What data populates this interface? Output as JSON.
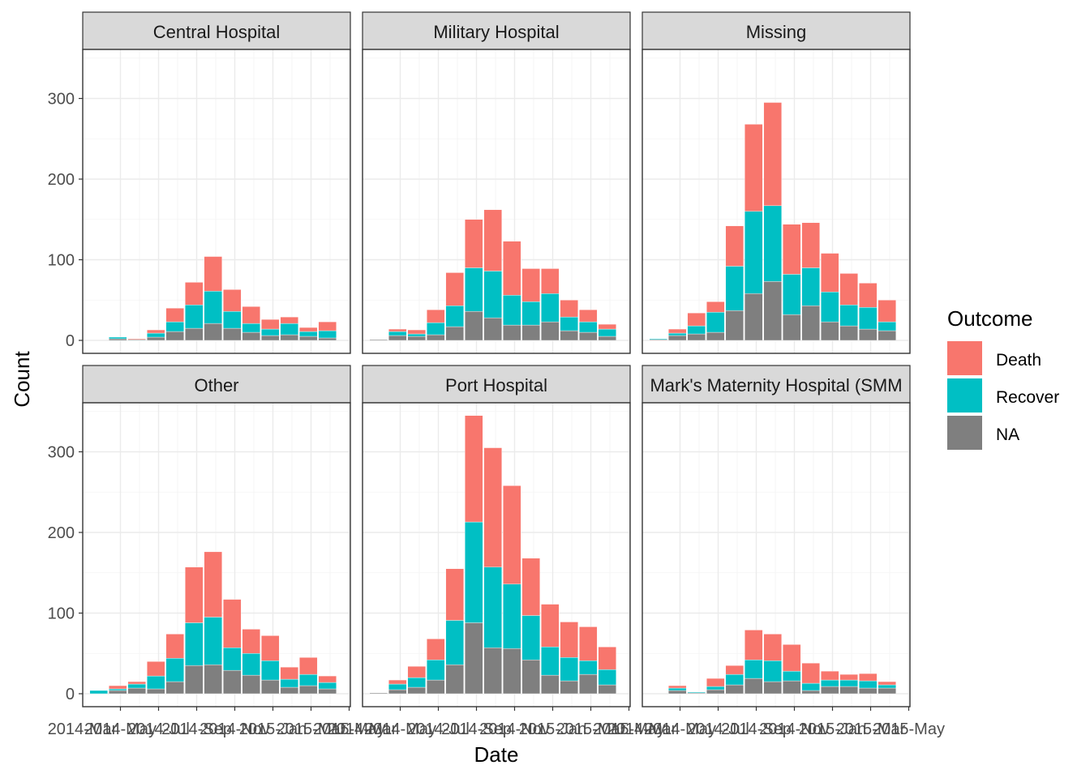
{
  "chart_data": {
    "type": "bar",
    "stacked": true,
    "facets": [
      "Central Hospital",
      "Military Hospital",
      "Missing",
      "Other",
      "Port Hospital",
      "Mark's Maternity Hospital (SMM"
    ],
    "x_tick_labels": [
      "2014-Mar",
      "2014-May",
      "2014-Jul",
      "2014-Sep",
      "2014-Nov",
      "2015-Jan",
      "2015-Mar",
      "2015-May"
    ],
    "xlabel": "Date",
    "ylabel": "Count",
    "ylim": [
      0,
      360
    ],
    "y_ticks": [
      0,
      100,
      200,
      300
    ],
    "grid": true,
    "legend": {
      "title": "Outcome",
      "position": "right",
      "entries": [
        {
          "name": "Death",
          "color": "#F8766D"
        },
        {
          "name": "Recover",
          "color": "#00BFC4"
        },
        {
          "name": "NA",
          "color": "#7F7F7F"
        }
      ]
    },
    "bars": [
      {
        "facet": "Central Hospital",
        "bars": [
          {
            "slot": 1,
            "na": 2,
            "recover": 2,
            "death": 0
          },
          {
            "slot": 2,
            "na": 1,
            "recover": 0,
            "death": 1
          },
          {
            "slot": 3,
            "na": 4,
            "recover": 5,
            "death": 4
          },
          {
            "slot": 4,
            "na": 11,
            "recover": 12,
            "death": 17
          },
          {
            "slot": 5,
            "na": 15,
            "recover": 29,
            "death": 28
          },
          {
            "slot": 6,
            "na": 21,
            "recover": 40,
            "death": 43
          },
          {
            "slot": 7,
            "na": 15,
            "recover": 21,
            "death": 27
          },
          {
            "slot": 8,
            "na": 10,
            "recover": 11,
            "death": 21
          },
          {
            "slot": 9,
            "na": 6,
            "recover": 8,
            "death": 12
          },
          {
            "slot": 10,
            "na": 7,
            "recover": 14,
            "death": 8
          },
          {
            "slot": 11,
            "na": 5,
            "recover": 6,
            "death": 5
          },
          {
            "slot": 12,
            "na": 3,
            "recover": 9,
            "death": 11
          }
        ]
      },
      {
        "facet": "Military Hospital",
        "bars": [
          {
            "slot": 0,
            "na": 1,
            "recover": 0,
            "death": 0
          },
          {
            "slot": 1,
            "na": 6,
            "recover": 5,
            "death": 3
          },
          {
            "slot": 2,
            "na": 5,
            "recover": 3,
            "death": 5
          },
          {
            "slot": 3,
            "na": 7,
            "recover": 15,
            "death": 16
          },
          {
            "slot": 4,
            "na": 17,
            "recover": 26,
            "death": 41
          },
          {
            "slot": 5,
            "na": 36,
            "recover": 54,
            "death": 60
          },
          {
            "slot": 6,
            "na": 28,
            "recover": 58,
            "death": 76
          },
          {
            "slot": 7,
            "na": 19,
            "recover": 37,
            "death": 67
          },
          {
            "slot": 8,
            "na": 19,
            "recover": 29,
            "death": 41
          },
          {
            "slot": 9,
            "na": 23,
            "recover": 35,
            "death": 31
          },
          {
            "slot": 10,
            "na": 12,
            "recover": 17,
            "death": 21
          },
          {
            "slot": 11,
            "na": 10,
            "recover": 13,
            "death": 15
          },
          {
            "slot": 12,
            "na": 5,
            "recover": 9,
            "death": 6
          }
        ]
      },
      {
        "facet": "Missing",
        "bars": [
          {
            "slot": 0,
            "na": 1,
            "recover": 1,
            "death": 0
          },
          {
            "slot": 1,
            "na": 6,
            "recover": 3,
            "death": 5
          },
          {
            "slot": 2,
            "na": 8,
            "recover": 10,
            "death": 16
          },
          {
            "slot": 3,
            "na": 10,
            "recover": 25,
            "death": 13
          },
          {
            "slot": 4,
            "na": 37,
            "recover": 55,
            "death": 50
          },
          {
            "slot": 5,
            "na": 58,
            "recover": 102,
            "death": 108
          },
          {
            "slot": 6,
            "na": 73,
            "recover": 94,
            "death": 128
          },
          {
            "slot": 7,
            "na": 32,
            "recover": 50,
            "death": 62
          },
          {
            "slot": 8,
            "na": 43,
            "recover": 47,
            "death": 56
          },
          {
            "slot": 9,
            "na": 23,
            "recover": 37,
            "death": 48
          },
          {
            "slot": 10,
            "na": 18,
            "recover": 26,
            "death": 39
          },
          {
            "slot": 11,
            "na": 14,
            "recover": 27,
            "death": 30
          },
          {
            "slot": 12,
            "na": 12,
            "recover": 11,
            "death": 27
          }
        ]
      },
      {
        "facet": "Other",
        "bars": [
          {
            "slot": 0,
            "na": 0,
            "recover": 4,
            "death": 0
          },
          {
            "slot": 1,
            "na": 4,
            "recover": 2,
            "death": 4
          },
          {
            "slot": 2,
            "na": 7,
            "recover": 5,
            "death": 3
          },
          {
            "slot": 3,
            "na": 6,
            "recover": 16,
            "death": 18
          },
          {
            "slot": 4,
            "na": 15,
            "recover": 29,
            "death": 30
          },
          {
            "slot": 5,
            "na": 35,
            "recover": 53,
            "death": 69
          },
          {
            "slot": 6,
            "na": 36,
            "recover": 59,
            "death": 81
          },
          {
            "slot": 7,
            "na": 29,
            "recover": 28,
            "death": 60
          },
          {
            "slot": 8,
            "na": 23,
            "recover": 27,
            "death": 30
          },
          {
            "slot": 9,
            "na": 17,
            "recover": 24,
            "death": 31
          },
          {
            "slot": 10,
            "na": 8,
            "recover": 10,
            "death": 15
          },
          {
            "slot": 11,
            "na": 10,
            "recover": 14,
            "death": 21
          },
          {
            "slot": 12,
            "na": 6,
            "recover": 8,
            "death": 8
          }
        ]
      },
      {
        "facet": "Port Hospital",
        "bars": [
          {
            "slot": 0,
            "na": 1,
            "recover": 0,
            "death": 0
          },
          {
            "slot": 1,
            "na": 5,
            "recover": 7,
            "death": 5
          },
          {
            "slot": 2,
            "na": 8,
            "recover": 12,
            "death": 14
          },
          {
            "slot": 3,
            "na": 17,
            "recover": 25,
            "death": 26
          },
          {
            "slot": 4,
            "na": 36,
            "recover": 55,
            "death": 64
          },
          {
            "slot": 5,
            "na": 88,
            "recover": 125,
            "death": 132
          },
          {
            "slot": 6,
            "na": 57,
            "recover": 100,
            "death": 148
          },
          {
            "slot": 7,
            "na": 56,
            "recover": 80,
            "death": 122
          },
          {
            "slot": 8,
            "na": 42,
            "recover": 55,
            "death": 71
          },
          {
            "slot": 9,
            "na": 23,
            "recover": 35,
            "death": 53
          },
          {
            "slot": 10,
            "na": 16,
            "recover": 29,
            "death": 44
          },
          {
            "slot": 11,
            "na": 24,
            "recover": 17,
            "death": 42
          },
          {
            "slot": 12,
            "na": 11,
            "recover": 19,
            "death": 28
          }
        ]
      },
      {
        "facet": "Mark's Maternity Hospital (SMM",
        "bars": [
          {
            "slot": 1,
            "na": 4,
            "recover": 3,
            "death": 3
          },
          {
            "slot": 2,
            "na": 1,
            "recover": 1,
            "death": 0
          },
          {
            "slot": 3,
            "na": 5,
            "recover": 4,
            "death": 10
          },
          {
            "slot": 4,
            "na": 11,
            "recover": 13,
            "death": 11
          },
          {
            "slot": 5,
            "na": 19,
            "recover": 23,
            "death": 37
          },
          {
            "slot": 6,
            "na": 15,
            "recover": 26,
            "death": 33
          },
          {
            "slot": 7,
            "na": 16,
            "recover": 12,
            "death": 33
          },
          {
            "slot": 8,
            "na": 4,
            "recover": 9,
            "death": 25
          },
          {
            "slot": 9,
            "na": 9,
            "recover": 8,
            "death": 11
          },
          {
            "slot": 10,
            "na": 9,
            "recover": 8,
            "death": 7
          },
          {
            "slot": 11,
            "na": 7,
            "recover": 9,
            "death": 9
          },
          {
            "slot": 12,
            "na": 7,
            "recover": 4,
            "death": 4
          }
        ]
      }
    ]
  }
}
